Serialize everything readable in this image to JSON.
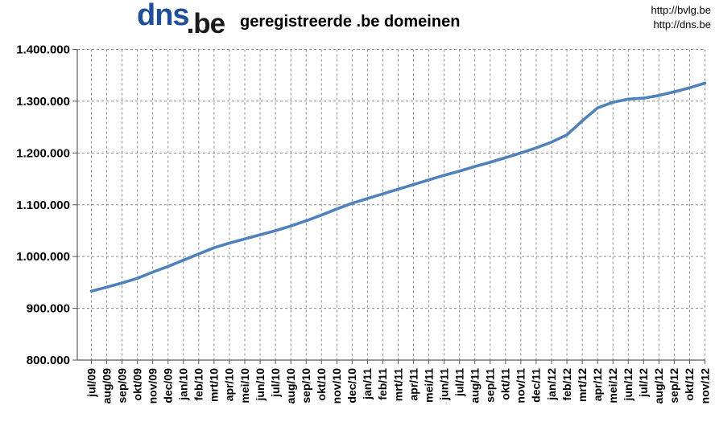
{
  "header": {
    "logo": {
      "dns_part": "dns",
      "tld_part": ".be"
    },
    "title": "geregistreerde .be domeinen",
    "links": [
      "http://bvlg.be",
      "http://dns.be"
    ]
  },
  "chart_data": {
    "type": "line",
    "title": "geregistreerde .be domeinen",
    "xlabel": "",
    "ylabel": "",
    "legend": "none",
    "grid": "dashed gray, both axes",
    "ylim": [
      800000,
      1400000
    ],
    "yticks": [
      800000,
      900000,
      1000000,
      1100000,
      1200000,
      1300000,
      1400000
    ],
    "ytick_label_style": "thousands separated by dots, e.g. 1.400.000",
    "categories": [
      "jul/09",
      "aug/09",
      "sep/09",
      "okt/09",
      "nov/09",
      "dec/09",
      "jan/10",
      "feb/10",
      "mrt/10",
      "apr/10",
      "mei/10",
      "jun/10",
      "jul/10",
      "aug/10",
      "sep/10",
      "okt/10",
      "nov/10",
      "dec/10",
      "jan/11",
      "feb/11",
      "mrt/11",
      "apr/11",
      "mei/11",
      "jun/11",
      "jul/11",
      "aug/11",
      "sep/11",
      "okt/11",
      "nov/11",
      "dec/11",
      "jan/12",
      "feb/12",
      "mrt/12",
      "apr/12",
      "mei/12",
      "jun/12",
      "jul/12",
      "aug/12",
      "sep/12",
      "okt/12",
      "nov/12"
    ],
    "series": [
      {
        "name": "geregistreerde .be domeinen",
        "color": "#4f81bd",
        "values": [
          933000,
          941000,
          949000,
          958000,
          970000,
          981000,
          993000,
          1005000,
          1017000,
          1026000,
          1034000,
          1042000,
          1050000,
          1059000,
          1069000,
          1080000,
          1092000,
          1103000,
          1112000,
          1121000,
          1130000,
          1139000,
          1148000,
          1157000,
          1165000,
          1174000,
          1182000,
          1191000,
          1200000,
          1210000,
          1221000,
          1235000,
          1262000,
          1287000,
          1298000,
          1304000,
          1306000,
          1311000,
          1318000,
          1326000,
          1335000
        ]
      }
    ]
  },
  "colors": {
    "line": "#4f81bd",
    "gridline": "#8c8c8c",
    "axis": "#595959",
    "text": "#000000",
    "logo_blue": "#1e4f9e",
    "logo_dark": "#1b1b1b",
    "background": "#ffffff"
  }
}
